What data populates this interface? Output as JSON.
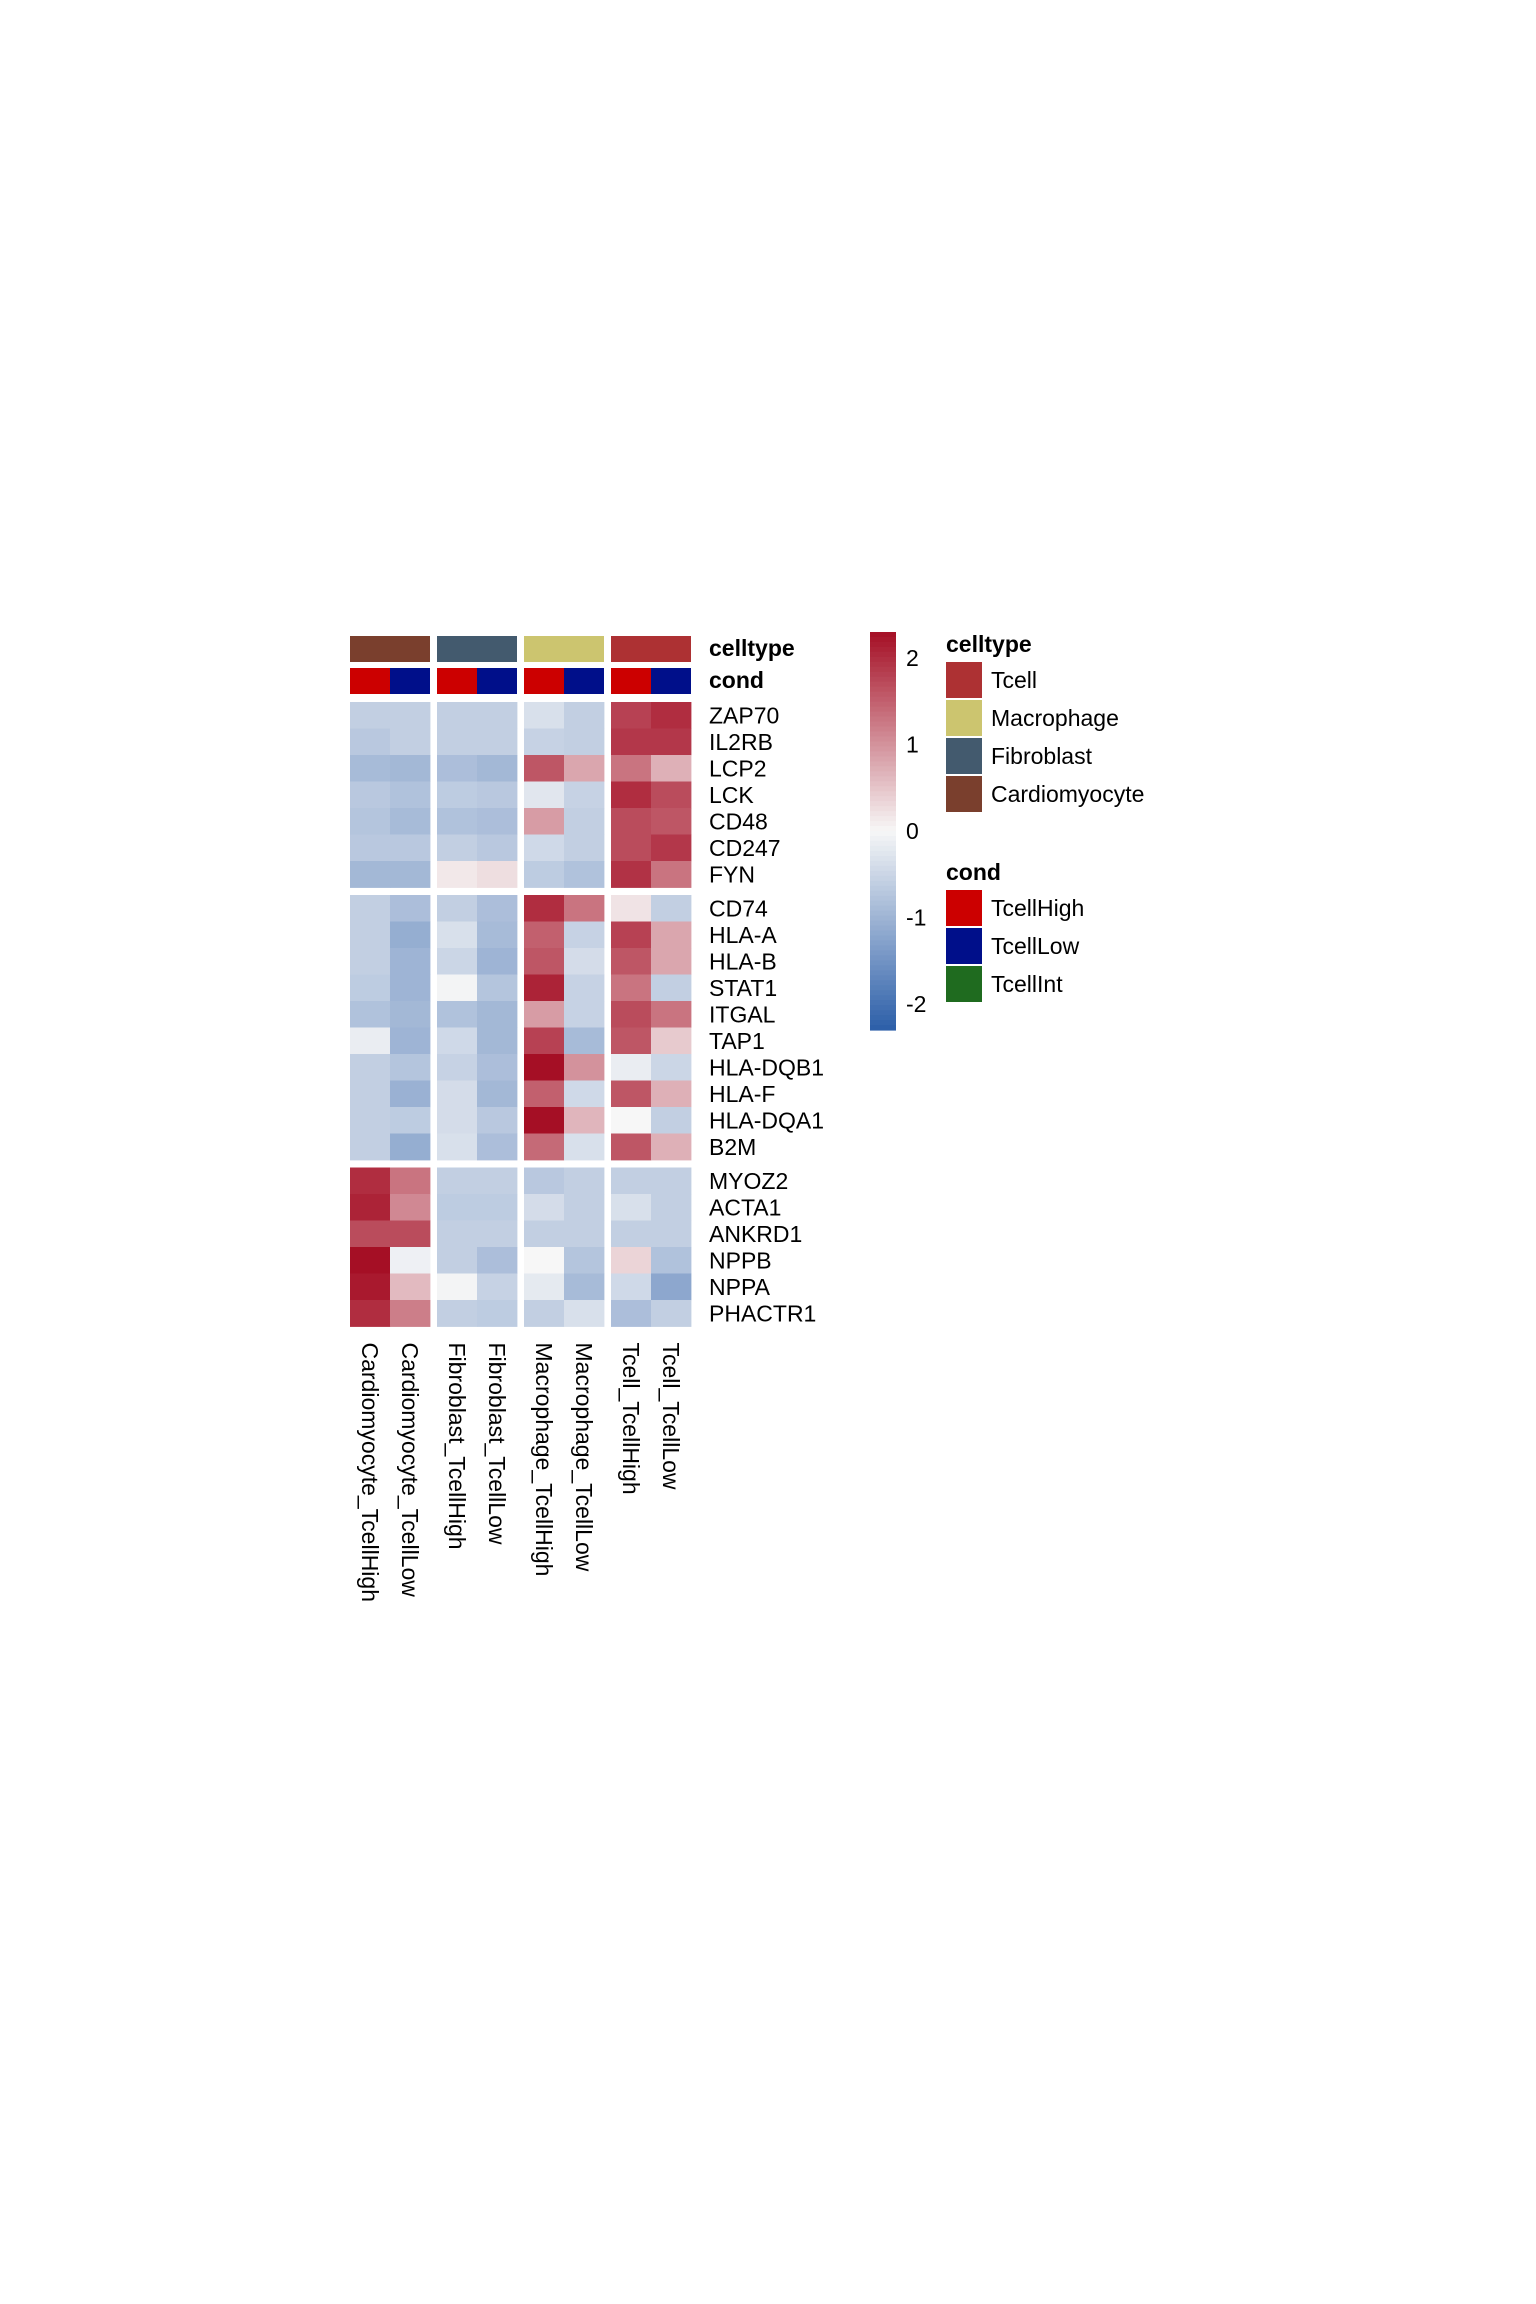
{
  "chart_data": {
    "type": "heatmap",
    "colorscale": {
      "min": -2.3,
      "max": 2.3,
      "low_color": "#2b5ea8",
      "mid_color": "#f7f7f7",
      "high_color": "#a50f25",
      "ticks": [
        "2",
        "1",
        "0",
        "-1",
        "-2"
      ],
      "tick_values": [
        2,
        1,
        0,
        -1,
        -2
      ]
    },
    "columns": [
      "Cardiomyocyte_TcellHigh",
      "Cardiomyocyte_TcellLow",
      "Fibroblast_TcellHigh",
      "Fibroblast_TcellLow",
      "Macrophage_TcellHigh",
      "Macrophage_TcellLow",
      "Tcell_TcellHigh",
      "Tcell_TcellLow"
    ],
    "column_groups": [
      2,
      2,
      2,
      2
    ],
    "row_groups": [
      7,
      10,
      6
    ],
    "rows": [
      "ZAP70",
      "IL2RB",
      "LCP2",
      "LCK",
      "CD48",
      "CD247",
      "FYN",
      "CD74",
      "HLA-A",
      "HLA-B",
      "STAT1",
      "ITGAL",
      "TAP1",
      "HLA-DQB1",
      "HLA-F",
      "HLA-DQA1",
      "B2M",
      "MYOZ2",
      "ACTA1",
      "ANKRD1",
      "NPPB",
      "NPPA",
      "PHACTR1"
    ],
    "values": [
      [
        -0.6,
        -0.6,
        -0.6,
        -0.6,
        -0.35,
        -0.6,
        1.8,
        2.0
      ],
      [
        -0.7,
        -0.6,
        -0.6,
        -0.6,
        -0.55,
        -0.6,
        1.9,
        1.9
      ],
      [
        -0.9,
        -0.95,
        -0.85,
        -0.95,
        1.6,
        0.8,
        1.3,
        0.7
      ],
      [
        -0.7,
        -0.8,
        -0.65,
        -0.7,
        -0.25,
        -0.55,
        2.0,
        1.7
      ],
      [
        -0.75,
        -0.9,
        -0.8,
        -0.85,
        0.9,
        -0.6,
        1.7,
        1.6
      ],
      [
        -0.7,
        -0.7,
        -0.6,
        -0.7,
        -0.45,
        -0.6,
        1.7,
        1.9
      ],
      [
        -0.95,
        -0.95,
        0.15,
        0.25,
        -0.65,
        -0.8,
        1.95,
        1.3
      ],
      [
        -0.6,
        -0.85,
        -0.6,
        -0.85,
        2.0,
        1.3,
        0.2,
        -0.6
      ],
      [
        -0.6,
        -1.1,
        -0.35,
        -0.9,
        1.5,
        -0.55,
        1.8,
        0.8
      ],
      [
        -0.6,
        -1.0,
        -0.5,
        -1.0,
        1.6,
        -0.4,
        1.6,
        0.8
      ],
      [
        -0.65,
        -1.0,
        -0.05,
        -0.75,
        2.1,
        -0.55,
        1.3,
        -0.6
      ],
      [
        -0.8,
        -0.95,
        -0.8,
        -0.95,
        0.9,
        -0.55,
        1.7,
        1.3
      ],
      [
        -0.15,
        -1.0,
        -0.45,
        -0.95,
        1.8,
        -0.9,
        1.6,
        0.45
      ],
      [
        -0.6,
        -0.75,
        -0.55,
        -0.85,
        2.3,
        1.0,
        -0.15,
        -0.5
      ],
      [
        -0.6,
        -1.05,
        -0.4,
        -0.95,
        1.5,
        -0.45,
        1.6,
        0.7
      ],
      [
        -0.6,
        -0.65,
        -0.4,
        -0.7,
        2.3,
        0.65,
        0.0,
        -0.6
      ],
      [
        -0.6,
        -1.1,
        -0.35,
        -0.85,
        1.4,
        -0.35,
        1.6,
        0.7
      ],
      [
        2.0,
        1.3,
        -0.6,
        -0.6,
        -0.7,
        -0.6,
        -0.6,
        -0.6
      ],
      [
        2.1,
        1.1,
        -0.65,
        -0.65,
        -0.4,
        -0.6,
        -0.35,
        -0.6
      ],
      [
        1.7,
        1.7,
        -0.6,
        -0.6,
        -0.6,
        -0.6,
        -0.6,
        -0.6
      ],
      [
        2.3,
        -0.1,
        -0.6,
        -0.85,
        0.0,
        -0.75,
        0.35,
        -0.8
      ],
      [
        2.2,
        0.6,
        -0.05,
        -0.55,
        -0.2,
        -0.9,
        -0.45,
        -1.2
      ],
      [
        2.0,
        1.2,
        -0.6,
        -0.65,
        -0.6,
        -0.35,
        -0.85,
        -0.6
      ]
    ],
    "annotations": {
      "celltype": {
        "label": "celltype",
        "per_column": [
          "Cardiomyocyte",
          "Cardiomyocyte",
          "Fibroblast",
          "Fibroblast",
          "Macrophage",
          "Macrophage",
          "Tcell",
          "Tcell"
        ]
      },
      "cond": {
        "label": "cond",
        "per_column": [
          "TcellHigh",
          "TcellLow",
          "TcellHigh",
          "TcellLow",
          "TcellHigh",
          "TcellLow",
          "TcellHigh",
          "TcellLow"
        ]
      }
    },
    "legends": [
      {
        "title": "celltype",
        "items": [
          {
            "label": "Tcell",
            "color": "#ad3133"
          },
          {
            "label": "Macrophage",
            "color": "#ccc56f"
          },
          {
            "label": "Fibroblast",
            "color": "#435a6e"
          },
          {
            "label": "Cardiomyocyte",
            "color": "#7a3f2d"
          }
        ]
      },
      {
        "title": "cond",
        "items": [
          {
            "label": "TcellHigh",
            "color": "#cc0000"
          },
          {
            "label": "TcellLow",
            "color": "#000f8a"
          },
          {
            "label": "TcellInt",
            "color": "#1f6b1f"
          }
        ]
      }
    ]
  }
}
